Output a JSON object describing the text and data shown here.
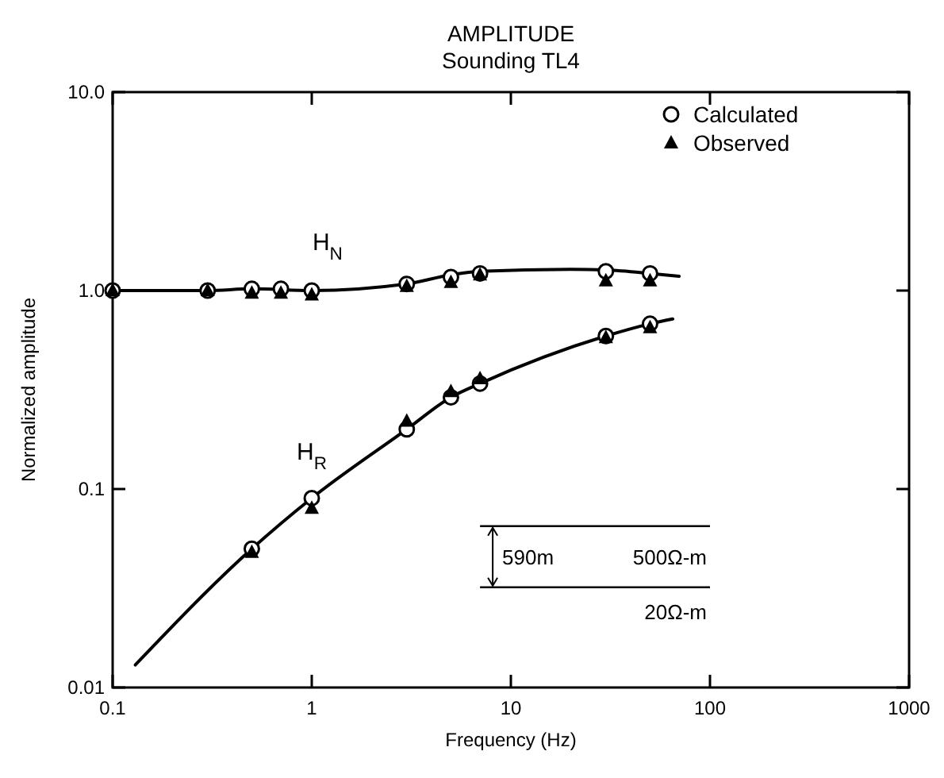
{
  "chart_data": {
    "type": "scatter",
    "title": "AMPLITUDE",
    "subtitle": "Sounding TL4",
    "xlabel": "Frequency (Hz)",
    "ylabel": "Normalized amplitude",
    "log": "xy",
    "grid": false,
    "legend": "top right",
    "xlim": [
      0.1,
      1000
    ],
    "xticks": [
      0.1,
      1,
      10,
      100,
      1000
    ],
    "ylim": [
      0.01,
      10
    ],
    "yticks": [
      0.01,
      0.1,
      {
        "value": 1,
        "label": "1.0"
      },
      {
        "value": 10,
        "label": "10.0"
      }
    ],
    "series": [
      {
        "type": "line",
        "color": "#000000",
        "marker": "none",
        "line_style": "solid",
        "x": [
          0.1,
          0.3,
          0.5,
          1,
          3,
          5,
          7,
          20,
          30,
          50,
          70
        ],
        "values": [
          1.0,
          1.0,
          1.02,
          1.0,
          1.08,
          1.2,
          1.25,
          1.28,
          1.27,
          1.22,
          1.18
        ]
      },
      {
        "type": "line",
        "color": "#000000",
        "marker": "none",
        "line_style": "solid",
        "x": [
          0.13,
          0.5,
          1,
          3,
          5,
          7,
          30,
          50,
          65
        ],
        "values": [
          0.013,
          0.05,
          0.09,
          0.2,
          0.29,
          0.34,
          0.59,
          0.68,
          0.72
        ]
      },
      {
        "name": "Calculated",
        "color": "#000000",
        "marker": "circle",
        "x": [
          0.1,
          0.3,
          0.5,
          0.7,
          1,
          3,
          5,
          7,
          30,
          50,
          0.5,
          1,
          3,
          5,
          7,
          30,
          50
        ],
        "values": [
          1.0,
          1.0,
          1.02,
          1.02,
          1.0,
          1.08,
          1.17,
          1.22,
          1.25,
          1.22,
          0.05,
          0.09,
          0.2,
          0.29,
          0.34,
          0.59,
          0.68
        ]
      },
      {
        "name": "Observed",
        "color": "#000000",
        "marker": "triangle",
        "x": [
          0.1,
          0.3,
          0.5,
          0.7,
          1,
          3,
          5,
          7,
          30,
          50,
          0.5,
          1,
          3,
          5,
          7,
          30,
          50
        ],
        "values": [
          1.0,
          1.0,
          0.97,
          0.97,
          0.95,
          1.05,
          1.1,
          1.2,
          1.12,
          1.12,
          0.048,
          0.08,
          0.22,
          0.31,
          0.36,
          0.58,
          0.65
        ]
      }
    ],
    "annotations": [
      "H$_{N}$",
      "H$_{R}$",
      "590m",
      "500Ω-m",
      "20Ω-m"
    ]
  }
}
